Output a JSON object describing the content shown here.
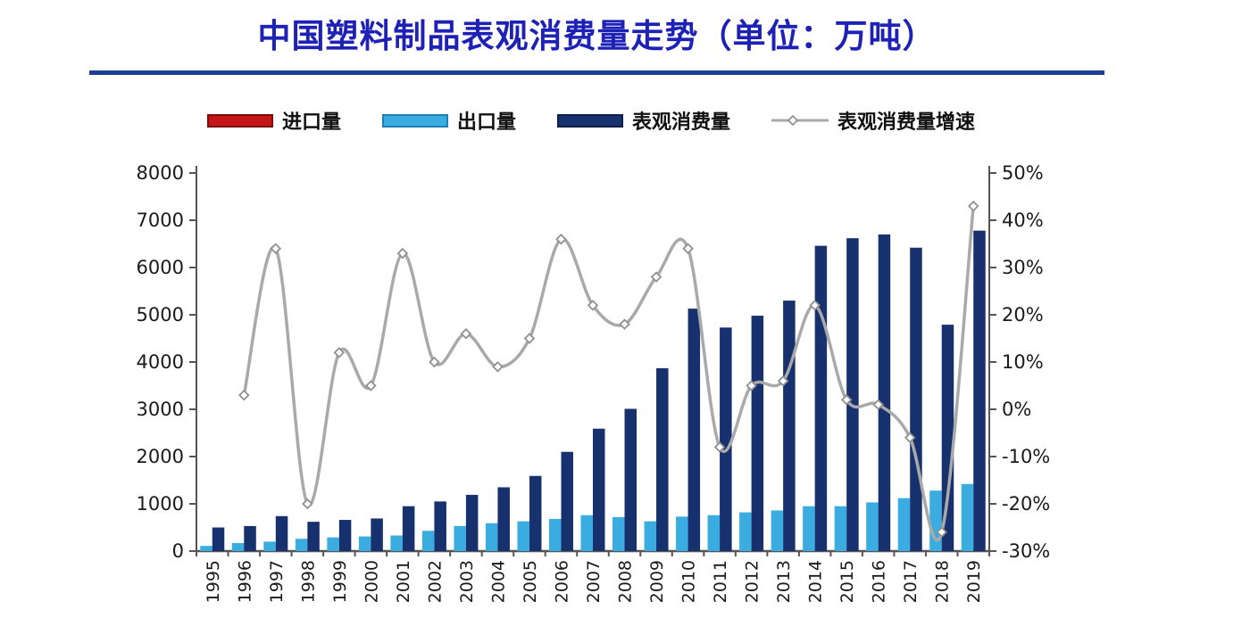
{
  "title": {
    "text": "中国塑料制品表观消费量走势（单位：万吨）"
  },
  "colors": {
    "title": "#1d21b6",
    "title_rule": "#1c3e94",
    "axis_line": "#555555",
    "tick_text": "#1a1a1a",
    "page_bg": "#ffffff"
  },
  "legend": {
    "items": [
      {
        "id": "import",
        "label": "进口量",
        "swatch_color": "#c41616",
        "swatch_border": "#7a0c0c",
        "kind": "bar"
      },
      {
        "id": "export",
        "label": "出口量",
        "swatch_color": "#3bacdf",
        "swatch_border": "#1f7fb3",
        "kind": "bar"
      },
      {
        "id": "consumption",
        "label": "表观消费量",
        "swatch_color": "#17306e",
        "swatch_border": "#101f49",
        "kind": "bar"
      },
      {
        "id": "growth",
        "label": "表观消费量增速",
        "swatch_color": "#a9a9a9",
        "swatch_border": "#8c8c8c",
        "kind": "line"
      }
    ]
  },
  "chart_data": {
    "type": "bar",
    "combo": "grouped bars on left axis + smoothed line on right axis",
    "title": "中国塑料制品表观消费量走势（单位：万吨）",
    "unit": "万吨",
    "categories": [
      "1995",
      "1996",
      "1997",
      "1998",
      "1999",
      "2000",
      "2001",
      "2002",
      "2003",
      "2004",
      "2005",
      "2006",
      "2007",
      "2008",
      "2009",
      "2010",
      "2011",
      "2012",
      "2013",
      "2014",
      "2015",
      "2016",
      "2017",
      "2018",
      "2019"
    ],
    "series": [
      {
        "id": "import",
        "name": "进口量",
        "type": "bar",
        "axis": "left",
        "color": "#c41616",
        "values": null,
        "note": "legend entry is shown but import bars are not visible in the plot area"
      },
      {
        "id": "export",
        "name": "出口量",
        "type": "bar",
        "axis": "left",
        "color": "#3bacdf",
        "values": [
          110,
          170,
          200,
          260,
          290,
          310,
          330,
          430,
          530,
          590,
          630,
          680,
          760,
          720,
          630,
          730,
          760,
          820,
          860,
          950,
          950,
          1030,
          1120,
          1280,
          1420
        ]
      },
      {
        "id": "consumption",
        "name": "表观消费量",
        "type": "bar",
        "axis": "left",
        "color": "#17306e",
        "values": [
          500,
          530,
          740,
          620,
          660,
          690,
          950,
          1050,
          1190,
          1350,
          1590,
          2100,
          2590,
          3010,
          3870,
          5130,
          4730,
          4980,
          5300,
          6460,
          6620,
          6700,
          6420,
          4790,
          6780
        ]
      },
      {
        "id": "growth",
        "name": "表观消费量增速",
        "type": "line",
        "axis": "right",
        "unit": "%",
        "color": "#a9a9a9",
        "marker": "open-diamond",
        "values": [
          null,
          3,
          34,
          -20,
          12,
          5,
          33,
          10,
          16,
          9,
          15,
          36,
          22,
          18,
          28,
          34,
          -8,
          5,
          6,
          22,
          2,
          1,
          -6,
          -26,
          43
        ]
      }
    ],
    "left_axis": {
      "min": 0,
      "max": 8000,
      "step": 1000,
      "tick_labels": [
        "0",
        "1000",
        "2000",
        "3000",
        "4000",
        "5000",
        "6000",
        "7000",
        "8000"
      ]
    },
    "right_axis": {
      "min": -30,
      "max": 50,
      "step": 10,
      "tick_labels": [
        "-30%",
        "-20%",
        "-10%",
        "0%",
        "10%",
        "20%",
        "30%",
        "40%",
        "50%"
      ]
    },
    "grid": false,
    "legend_position": "top",
    "x_label_rotation": -90
  }
}
